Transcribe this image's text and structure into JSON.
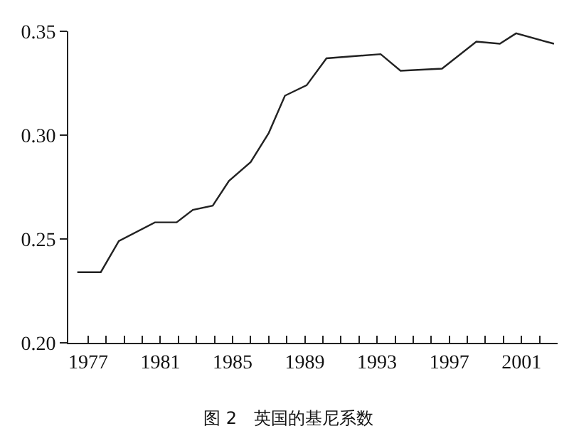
{
  "chart_data": {
    "type": "line",
    "title": "图 2　英国的基尼系数",
    "color": "#222222",
    "x": [
      1976.4,
      1977.7,
      1978.7,
      1980.7,
      1981.9,
      1982.8,
      1983.9,
      1984.8,
      1986.0,
      1987.0,
      1987.9,
      1989.1,
      1990.2,
      1993.2,
      1994.3,
      1996.6,
      1998.5,
      1999.8,
      2000.7,
      2002.8
    ],
    "values": [
      0.234,
      0.234,
      0.249,
      0.258,
      0.258,
      0.264,
      0.266,
      0.278,
      0.287,
      0.301,
      0.319,
      0.324,
      0.337,
      0.339,
      0.331,
      0.332,
      0.345,
      0.344,
      0.349,
      0.344
    ],
    "xlim": [
      1975.9,
      2003.0
    ],
    "xticks": [
      1977,
      {
        "value": 1978,
        "label": null
      },
      {
        "value": 1979,
        "label": null
      },
      {
        "value": 1980,
        "label": null
      },
      1981,
      {
        "value": 1982,
        "label": null
      },
      {
        "value": 1983,
        "label": null
      },
      {
        "value": 1984,
        "label": null
      },
      1985,
      {
        "value": 1986,
        "label": null
      },
      {
        "value": 1987,
        "label": null
      },
      {
        "value": 1988,
        "label": null
      },
      1989,
      {
        "value": 1990,
        "label": null
      },
      {
        "value": 1991,
        "label": null
      },
      {
        "value": 1992,
        "label": null
      },
      1993,
      {
        "value": 1994,
        "label": null
      },
      {
        "value": 1995,
        "label": null
      },
      {
        "value": 1996,
        "label": null
      },
      1997,
      {
        "value": 1998,
        "label": null
      },
      {
        "value": 1999,
        "label": null
      },
      {
        "value": 2000,
        "label": null
      },
      2001,
      {
        "value": 2002,
        "label": null
      }
    ],
    "ylim": [
      0.2,
      0.35
    ],
    "yticks": [
      {
        "value": 0.2,
        "label": "0.20"
      },
      {
        "value": 0.25,
        "label": "0.25"
      },
      {
        "value": 0.3,
        "label": "0.30"
      },
      {
        "value": 0.35,
        "label": "0.35"
      }
    ],
    "legend": false,
    "marker": "none",
    "line_style": "solid"
  }
}
